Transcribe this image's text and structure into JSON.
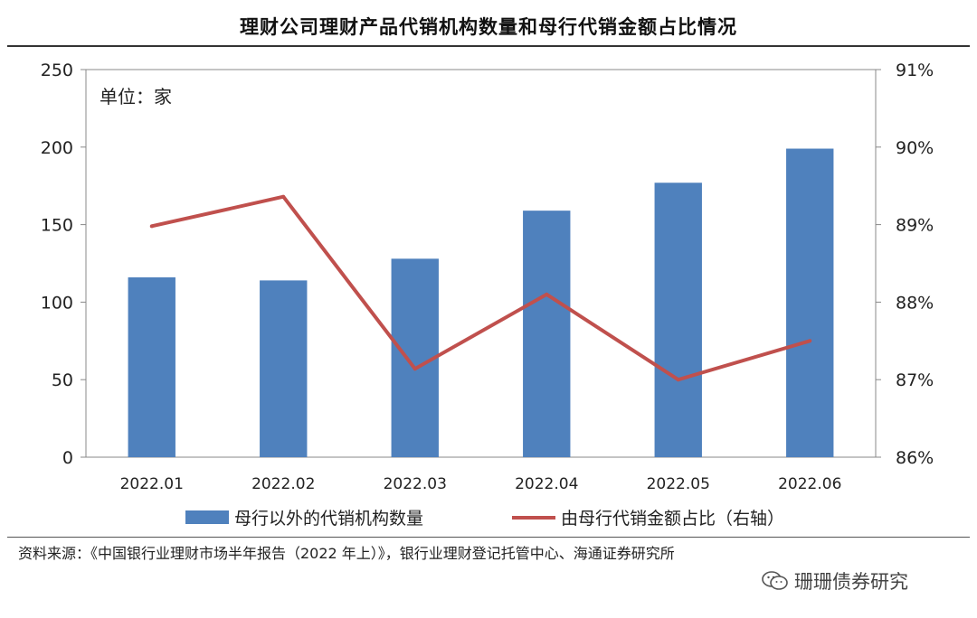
{
  "header": {
    "title": "理财公司理财产品代销机构数量和母行代销金额占比情况"
  },
  "footer": {
    "source": "资料来源：《中国银行业理财市场半年报告（2022 年上）》，银行业理财登记托管中心、海通证券研究所",
    "watermark": "珊珊债券研究",
    "watermark_icon": "wechat-icon"
  },
  "chart_data": {
    "type": "bar",
    "title": "理财公司理财产品代销机构数量和母行代销金额占比情况",
    "unit_label": "单位：家",
    "categories": [
      "2022.01",
      "2022.02",
      "2022.03",
      "2022.04",
      "2022.05",
      "2022.06"
    ],
    "series": [
      {
        "name": "母行以外的代销机构数量",
        "type": "bar",
        "axis": "left",
        "color": "#4F81BD",
        "values": [
          116,
          114,
          128,
          159,
          177,
          199
        ]
      },
      {
        "name": "由母行代销金额占比（右轴）",
        "type": "line",
        "axis": "right",
        "color": "#C0504D",
        "values": [
          88.98,
          89.36,
          87.14,
          88.1,
          87.0,
          87.5
        ]
      }
    ],
    "y_left": {
      "min": 0,
      "max": 250,
      "ticks": [
        "0",
        "50",
        "100",
        "150",
        "200",
        "250"
      ]
    },
    "y_right": {
      "min": 86,
      "max": 91,
      "ticks": [
        "86%",
        "87%",
        "88%",
        "89%",
        "90%",
        "91%"
      ]
    },
    "grid": false,
    "legend_position": "bottom"
  }
}
